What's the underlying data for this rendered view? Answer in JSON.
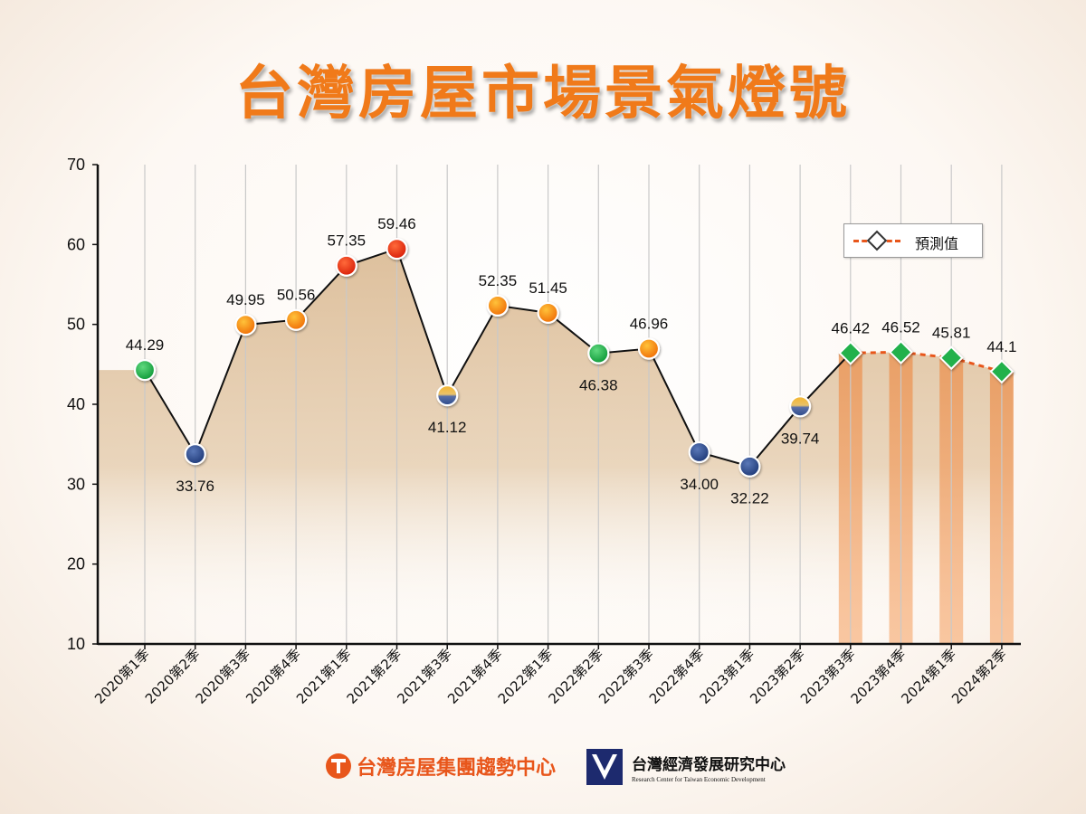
{
  "title": "台灣房屋市場景氣燈號",
  "legend": {
    "label": "預測值"
  },
  "footer": {
    "brand1": "台灣房屋集團趨勢中心",
    "brand2_name": "台灣經濟發展研究中心",
    "brand2_en": "Research Center for Taiwan Economic Development"
  },
  "colors": {
    "title": "#f07a1a",
    "area": "#e2c7a6",
    "forecast_line": "#e8561b",
    "forecast_band": "#f5a46a",
    "green": "#1fae4b",
    "blue": "#2c4a8c",
    "orange": "#f28a12",
    "red": "#e8300f"
  },
  "chart_data": {
    "type": "line",
    "title": "台灣房屋市場景氣燈號",
    "ylim": [
      10,
      70
    ],
    "yticks": [
      10,
      20,
      30,
      40,
      50,
      60,
      70
    ],
    "grid": "vertical",
    "legend_position": "top-right",
    "categories": [
      "2020第1季",
      "2020第2季",
      "2020第3季",
      "2020第4季",
      "2021第1季",
      "2021第2季",
      "2021第3季",
      "2021第4季",
      "2022第1季",
      "2022第2季",
      "2022第3季",
      "2022第4季",
      "2023第1季",
      "2023第2季",
      "2023第3季",
      "2023第4季",
      "2024第1季",
      "2024第2季"
    ],
    "values": [
      44.29,
      33.76,
      49.95,
      50.56,
      57.35,
      59.46,
      41.12,
      52.35,
      51.45,
      46.38,
      46.96,
      34.0,
      32.22,
      39.74,
      46.42,
      46.52,
      45.81,
      44.1
    ],
    "labels": [
      "44.29",
      "33.76",
      "49.95",
      "50.56",
      "57.35",
      "59.46",
      "41.12",
      "52.35",
      "51.45",
      "46.38",
      "46.96",
      "34.00",
      "32.22",
      "39.74",
      "46.42",
      "46.52",
      "45.81",
      "44.1"
    ],
    "label_position": [
      "above",
      "below",
      "above",
      "above",
      "above",
      "above",
      "below",
      "above",
      "above",
      "below",
      "above",
      "below",
      "below",
      "below",
      "above",
      "above",
      "above",
      "above"
    ],
    "signal": [
      "green",
      "blue",
      "orange",
      "orange",
      "red",
      "red",
      "blue-yellow",
      "orange",
      "orange",
      "green",
      "orange",
      "blue",
      "blue",
      "blue-yellow",
      "forecast",
      "forecast",
      "forecast",
      "forecast"
    ],
    "forecast_start_index": 14,
    "series": [
      {
        "name": "預測值",
        "from_index": 13,
        "to_index": 17,
        "style": "dashed"
      }
    ]
  }
}
